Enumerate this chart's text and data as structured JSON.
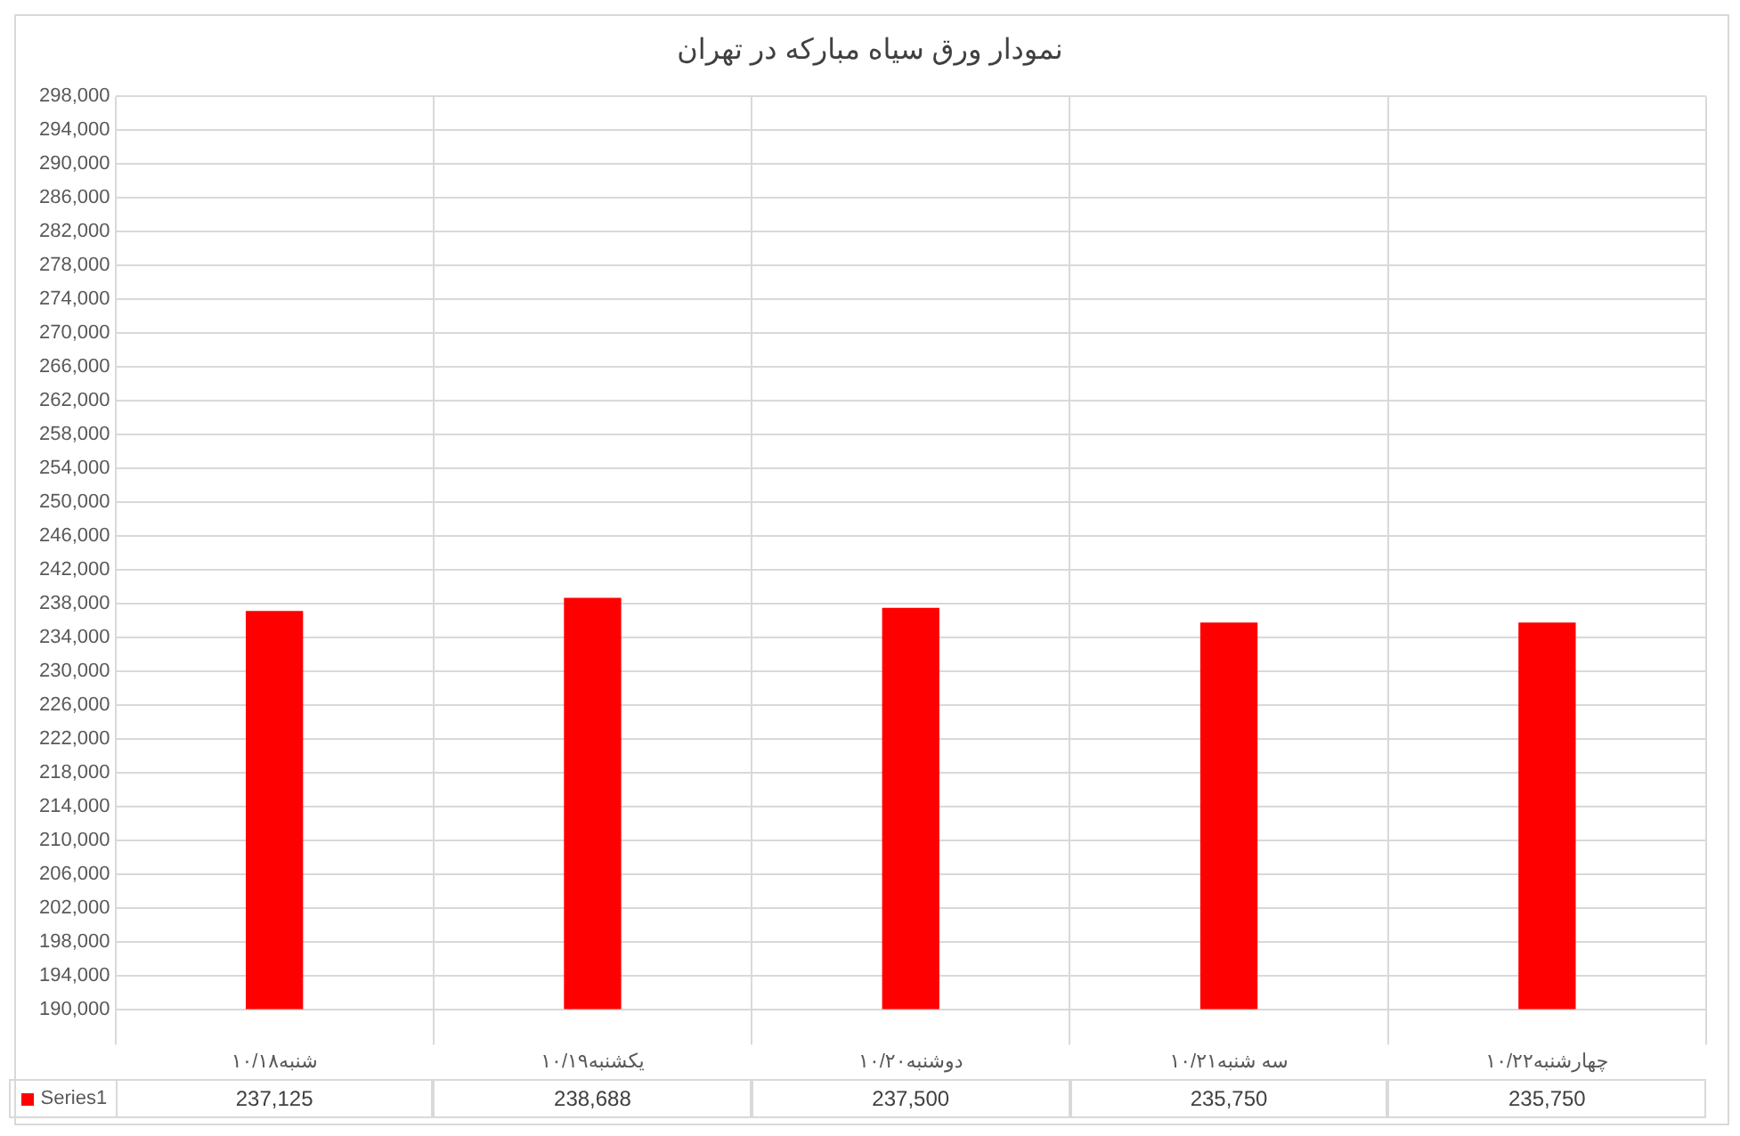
{
  "chart_data": {
    "type": "bar",
    "title": "نمودار ورق سیاه مبارکه در تهران",
    "categories": [
      "شنبه۱۰/۱۸",
      "یکشنبه۱۰/۱۹",
      "دوشنبه۱۰/۲۰",
      "سه شنبه۱۰/۲۱",
      "چهارشنبه۱۰/۲۲"
    ],
    "series": [
      {
        "name": "Series1",
        "color": "#ff0000",
        "values": [
          237125,
          238688,
          237500,
          235750,
          235750
        ],
        "value_labels": [
          "237,125",
          "238,688",
          "237,500",
          "235,750",
          "235,750"
        ]
      }
    ],
    "ylim": [
      190000,
      298000
    ],
    "yticks": [
      {
        "value": 190000,
        "label": "190,000"
      },
      {
        "value": 194000,
        "label": "194,000"
      },
      {
        "value": 198000,
        "label": "198,000"
      },
      {
        "value": 202000,
        "label": "202,000"
      },
      {
        "value": 206000,
        "label": "206,000"
      },
      {
        "value": 210000,
        "label": "210,000"
      },
      {
        "value": 214000,
        "label": "214,000"
      },
      {
        "value": 218000,
        "label": "218,000"
      },
      {
        "value": 222000,
        "label": "222,000"
      },
      {
        "value": 226000,
        "label": "226,000"
      },
      {
        "value": 230000,
        "label": "230,000"
      },
      {
        "value": 234000,
        "label": "234,000"
      },
      {
        "value": 238000,
        "label": "238,000"
      },
      {
        "value": 242000,
        "label": "242,000"
      },
      {
        "value": 246000,
        "label": "246,000"
      },
      {
        "value": 250000,
        "label": "250,000"
      },
      {
        "value": 254000,
        "label": "254,000"
      },
      {
        "value": 258000,
        "label": "258,000"
      },
      {
        "value": 262000,
        "label": "262,000"
      },
      {
        "value": 266000,
        "label": "266,000"
      },
      {
        "value": 270000,
        "label": "270,000"
      },
      {
        "value": 274000,
        "label": "274,000"
      },
      {
        "value": 278000,
        "label": "278,000"
      },
      {
        "value": 282000,
        "label": "282,000"
      },
      {
        "value": 286000,
        "label": "286,000"
      },
      {
        "value": 290000,
        "label": "290,000"
      },
      {
        "value": 294000,
        "label": "294,000"
      },
      {
        "value": 298000,
        "label": "298,000"
      }
    ],
    "grid": "y",
    "legend": "bottom"
  }
}
